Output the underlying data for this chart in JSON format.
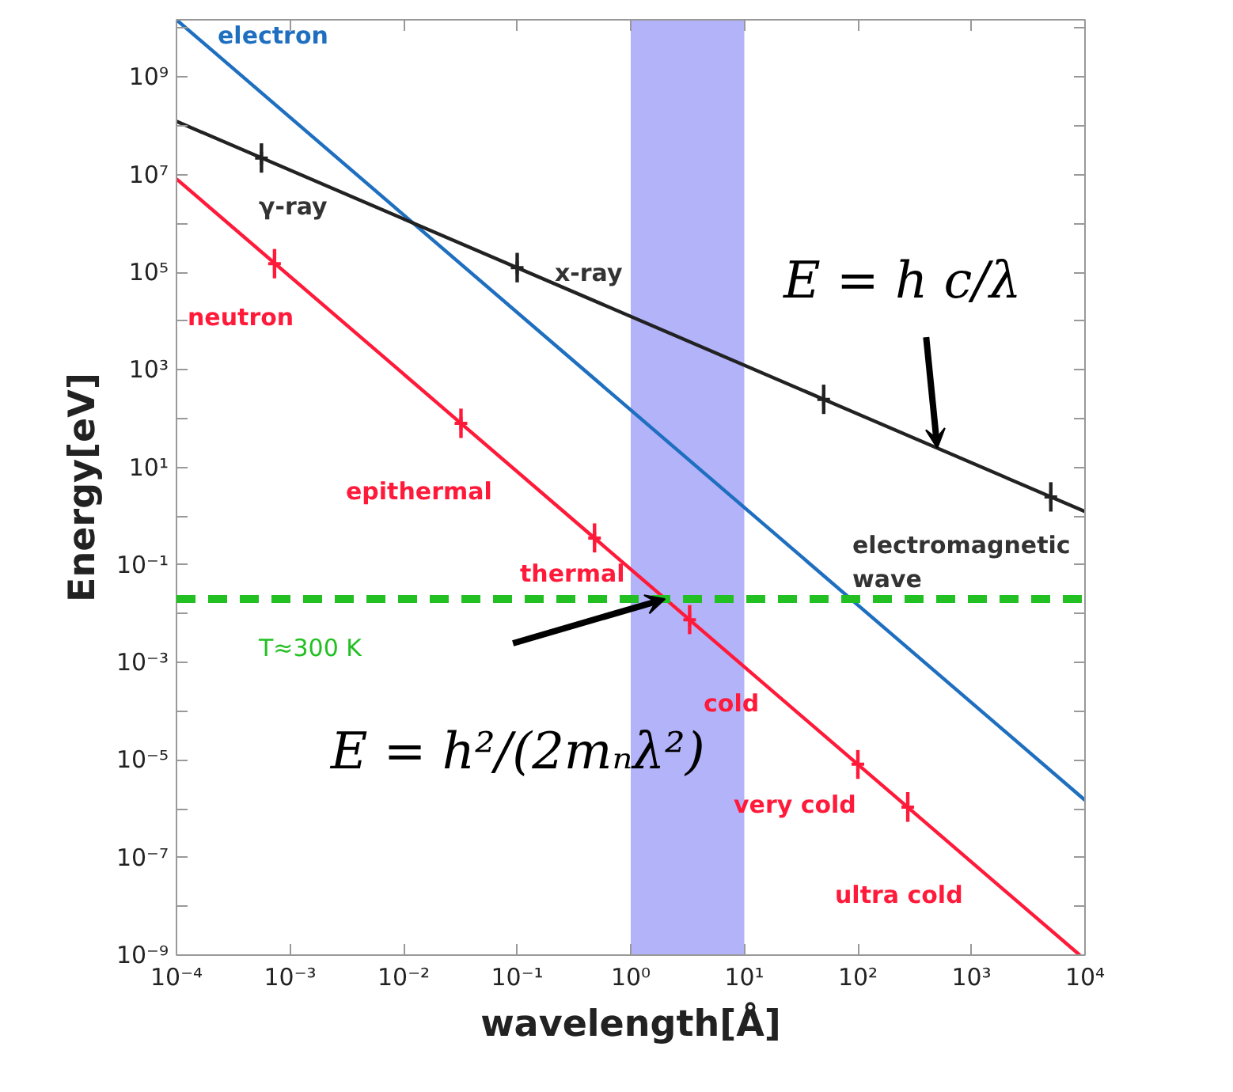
{
  "chart_data": {
    "type": "line",
    "xlabel": "wavelength[Å]",
    "ylabel": "Energy[eV]",
    "log": "xy",
    "grid": false,
    "xlim": [
      0.0001,
      10000
    ],
    "ylim": [
      1e-09,
      15000000000.0
    ],
    "xticks": [
      {
        "value": 0.0001,
        "label": "10⁻⁴"
      },
      {
        "value": 0.001,
        "label": "10⁻³"
      },
      {
        "value": 0.01,
        "label": "10⁻²"
      },
      {
        "value": 0.1,
        "label": "10⁻¹"
      },
      {
        "value": 1,
        "label": "10⁰"
      },
      {
        "value": 10,
        "label": "10¹"
      },
      {
        "value": 100,
        "label": "10²"
      },
      {
        "value": 1000,
        "label": "10³"
      },
      {
        "value": 10000,
        "label": "10⁴"
      }
    ],
    "yticks": [
      {
        "value": 1e-09,
        "label": "10⁻⁹"
      },
      {
        "value": 1e-08,
        "label": null
      },
      {
        "value": 1e-07,
        "label": "10⁻⁷"
      },
      {
        "value": 1e-06,
        "label": null
      },
      {
        "value": 1e-05,
        "label": "10⁻⁵"
      },
      {
        "value": 0.0001,
        "label": null
      },
      {
        "value": 0.001,
        "label": "10⁻³"
      },
      {
        "value": 0.01,
        "label": null
      },
      {
        "value": 0.1,
        "label": "10⁻¹"
      },
      {
        "value": 1,
        "label": null
      },
      {
        "value": 10,
        "label": "10¹"
      },
      {
        "value": 100,
        "label": null
      },
      {
        "value": 1000,
        "label": "10³"
      },
      {
        "value": 10000.0,
        "label": null
      },
      {
        "value": 100000.0,
        "label": "10⁵"
      },
      {
        "value": 1000000.0,
        "label": null
      },
      {
        "value": 10000000.0,
        "label": "10⁷"
      },
      {
        "value": 100000000.0,
        "label": null
      },
      {
        "value": 1000000000.0,
        "label": "10⁹"
      },
      {
        "value": 10000000000.0,
        "label": null
      }
    ],
    "series": [
      {
        "color": "#1f6fc0",
        "x": [
          0.0001,
          10000
        ],
        "values": [
          15000000000.0,
          1.5e-06
        ]
      },
      {
        "color": "#ff1a3a",
        "x": [
          0.0001,
          9000
        ],
        "values": [
          8200000.0,
          1e-09
        ]
      },
      {
        "color": "#222222",
        "x": [
          0.0001,
          10000
        ],
        "values": [
          124000000.0,
          1.24
        ]
      },
      {
        "type": "scatter",
        "marker": "cross",
        "color": "#222222",
        "x": [
          0.00056,
          0.1,
          50,
          5000
        ],
        "values": [
          22000000.0,
          124000.0,
          248,
          2.48
        ],
        "errors": [
          [
            11000000.0,
            44000000.0
          ],
          [
            62000.0,
            250000.0
          ],
          [
            124,
            496
          ],
          [
            1.24,
            4.96
          ]
        ]
      },
      {
        "type": "scatter",
        "marker": "cross",
        "color": "#ff1a3a",
        "x": [
          0.00073,
          0.032,
          0.48,
          3.3,
          100,
          275
        ],
        "values": [
          150000.0,
          80,
          0.355,
          0.0075,
          8.2e-06,
          1.08e-06
        ],
        "errors": [
          [
            75000.0,
            300000.0
          ],
          [
            40,
            160
          ],
          [
            0.18,
            0.71
          ],
          [
            0.0038,
            0.015
          ],
          [
            4.1e-06,
            1.6e-05
          ],
          [
            5.4e-07,
            2.2e-06
          ]
        ]
      }
    ],
    "bands": [
      {
        "axis": "x",
        "from": 1,
        "to": 10,
        "color": "#b3b3fa"
      }
    ],
    "ref_lines": [
      {
        "axis": "y",
        "value": 0.02,
        "label": "T≈300 K",
        "color": "#22c022",
        "line_style": "dashed"
      }
    ],
    "annotations": [
      "electron",
      "neutron",
      "γ-ray",
      "x-ray",
      "electromagnetic\nwave",
      "epithermal",
      "thermal",
      "cold",
      "very cold",
      "ultra cold",
      {
        "text": "E = h c/λ",
        "x": 500,
        "y": 25
      },
      {
        "text": "E = h²/(2mₙλ²)",
        "x": 2,
        "y": 0.02
      }
    ]
  }
}
